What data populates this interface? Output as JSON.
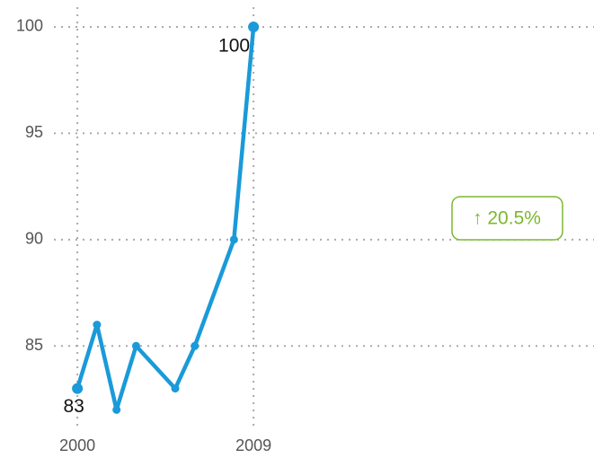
{
  "chart_data": {
    "type": "line",
    "x": [
      2000,
      2001,
      2002,
      2003,
      2005,
      2006,
      2008,
      2009
    ],
    "series": [
      {
        "name": null,
        "color": "#1a9ad9",
        "values": [
          83,
          86,
          82,
          85,
          83,
          85,
          90,
          100
        ]
      }
    ],
    "xlim": [
      1998.8,
      2026.4
    ],
    "xticks": [
      2000,
      2009
    ],
    "ylim": [
      81,
      101
    ],
    "yticks": [
      85,
      90,
      95,
      100
    ],
    "grid": true,
    "annotation": {
      "text": "↑ 20.5%",
      "color": "#7cb82f"
    }
  }
}
